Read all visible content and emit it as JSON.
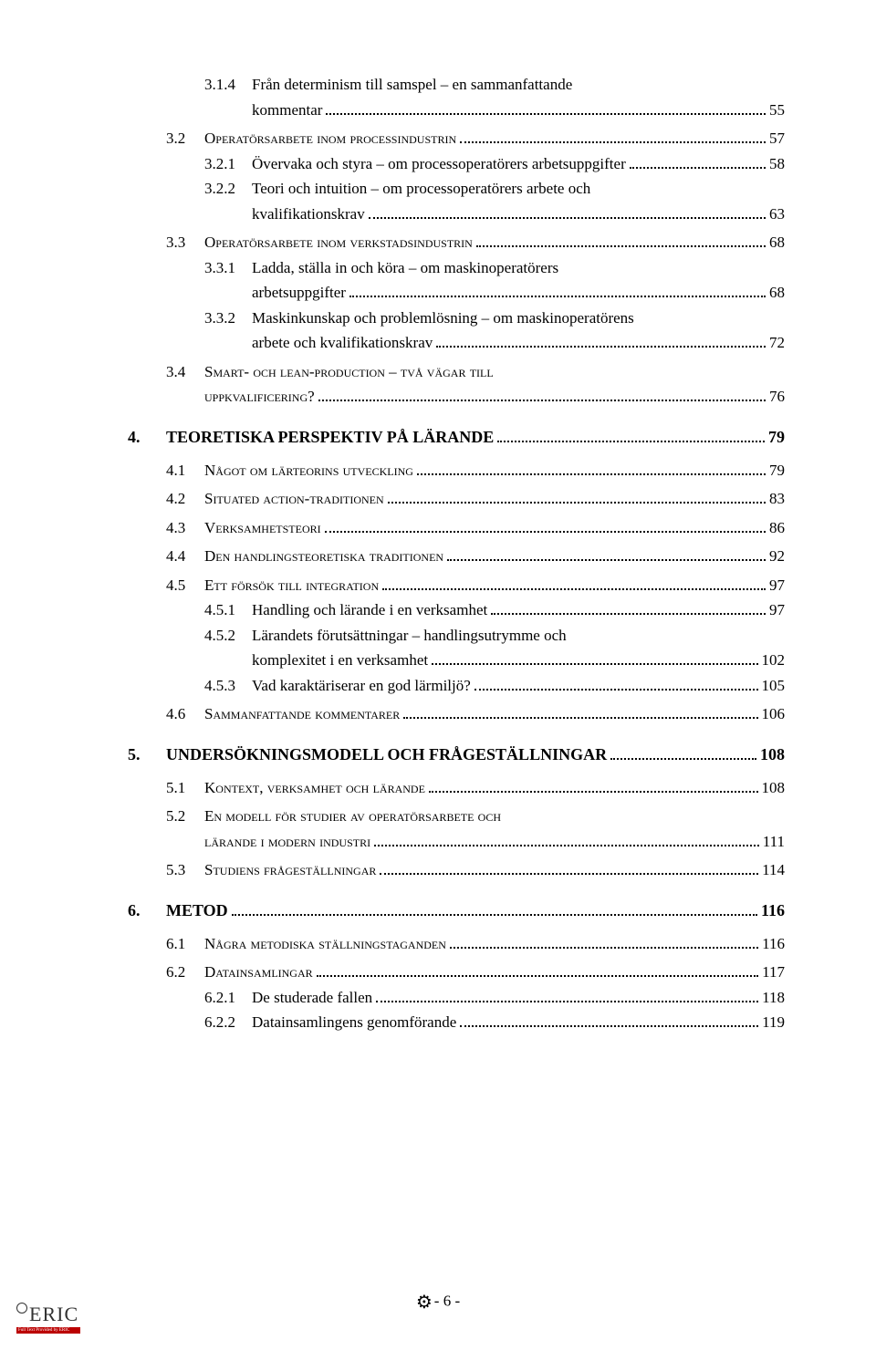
{
  "toc": [
    {
      "type": "subsection",
      "num": "3.1.4",
      "text": "Från determinism till samspel – en sammanfattande",
      "page": null,
      "continue": true
    },
    {
      "type": "continuation",
      "text": "kommentar",
      "page": "55"
    },
    {
      "type": "section",
      "num": "3.2",
      "text": "Operatörsarbete inom processindustrin",
      "page": "57"
    },
    {
      "type": "subsection",
      "num": "3.2.1",
      "text": "Övervaka och styra – om processoperatörers arbetsuppgifter",
      "page": "58"
    },
    {
      "type": "subsection",
      "num": "3.2.2",
      "text": "Teori och intuition – om processoperatörers arbete och",
      "page": null,
      "continue": true
    },
    {
      "type": "continuation",
      "text": "kvalifikationskrav",
      "page": "63"
    },
    {
      "type": "section",
      "num": "3.3",
      "text": "Operatörsarbete inom verkstadsindustrin",
      "page": "68"
    },
    {
      "type": "subsection",
      "num": "3.3.1",
      "text": "Ladda, ställa in och köra – om maskinoperatörers",
      "page": null,
      "continue": true
    },
    {
      "type": "continuation",
      "text": "arbetsuppgifter",
      "page": "68"
    },
    {
      "type": "subsection",
      "num": "3.3.2",
      "text": "Maskinkunskap och problemlösning – om maskinoperatörens",
      "page": null,
      "continue": true
    },
    {
      "type": "continuation",
      "text": "arbete och kvalifikationskrav",
      "page": "72"
    },
    {
      "type": "section",
      "num": "3.4",
      "text": "Smart- och lean-production – två vägar till",
      "page": null,
      "continue": true
    },
    {
      "type": "section-continuation",
      "text": "uppkvalificering?",
      "page": "76",
      "smallcaps": true
    },
    {
      "type": "chapter",
      "num": "4.",
      "text": "TEORETISKA PERSPEKTIV PÅ LÄRANDE",
      "page": "79"
    },
    {
      "type": "section",
      "num": "4.1",
      "text": "Något om lärteorins utveckling",
      "page": "79"
    },
    {
      "type": "section",
      "num": "4.2",
      "text": "Situated action-traditionen",
      "page": "83"
    },
    {
      "type": "section",
      "num": "4.3",
      "text": "Verksamhetsteori",
      "page": "86"
    },
    {
      "type": "section",
      "num": "4.4",
      "text": "Den handlingsteoretiska traditionen",
      "page": "92"
    },
    {
      "type": "section",
      "num": "4.5",
      "text": "Ett försök till integration",
      "page": "97"
    },
    {
      "type": "subsection",
      "num": "4.5.1",
      "text": "Handling och lärande i en verksamhet",
      "page": "97"
    },
    {
      "type": "subsection",
      "num": "4.5.2",
      "text": "Lärandets förutsättningar – handlingsutrymme och",
      "page": null,
      "continue": true
    },
    {
      "type": "continuation",
      "text": "komplexitet i en verksamhet",
      "page": "102"
    },
    {
      "type": "subsection",
      "num": "4.5.3",
      "text": "Vad karaktäriserar en god lärmiljö?",
      "page": "105"
    },
    {
      "type": "section",
      "num": "4.6",
      "text": "Sammanfattande kommentarer",
      "page": "106"
    },
    {
      "type": "chapter",
      "num": "5.",
      "text": "UNDERSÖKNINGSMODELL OCH FRÅGESTÄLLNINGAR",
      "page": "108"
    },
    {
      "type": "section",
      "num": "5.1",
      "text": "Kontext, verksamhet och lärande",
      "page": "108"
    },
    {
      "type": "section",
      "num": "5.2",
      "text": "En modell för studier av operatörsarbete och",
      "page": null,
      "continue": true
    },
    {
      "type": "section-continuation",
      "text": "lärande i modern industri",
      "page": "111",
      "smallcaps": true
    },
    {
      "type": "section",
      "num": "5.3",
      "text": "Studiens frågeställningar",
      "page": "114"
    },
    {
      "type": "chapter",
      "num": "6.",
      "text": "METOD",
      "page": "116"
    },
    {
      "type": "section",
      "num": "6.1",
      "text": "Några metodiska ställningstaganden",
      "page": "116"
    },
    {
      "type": "section",
      "num": "6.2",
      "text": "Datainsamlingar",
      "page": "117"
    },
    {
      "type": "subsection",
      "num": "6.2.1",
      "text": "De studerade fallen",
      "page": "118"
    },
    {
      "type": "subsection",
      "num": "6.2.2",
      "text": "Datainsamlingens genomförande",
      "page": "119"
    }
  ],
  "footer": {
    "page_label": "- 6 -",
    "eric_text": "ERIC",
    "eric_bar": "Full Text Provided by ERIC"
  }
}
